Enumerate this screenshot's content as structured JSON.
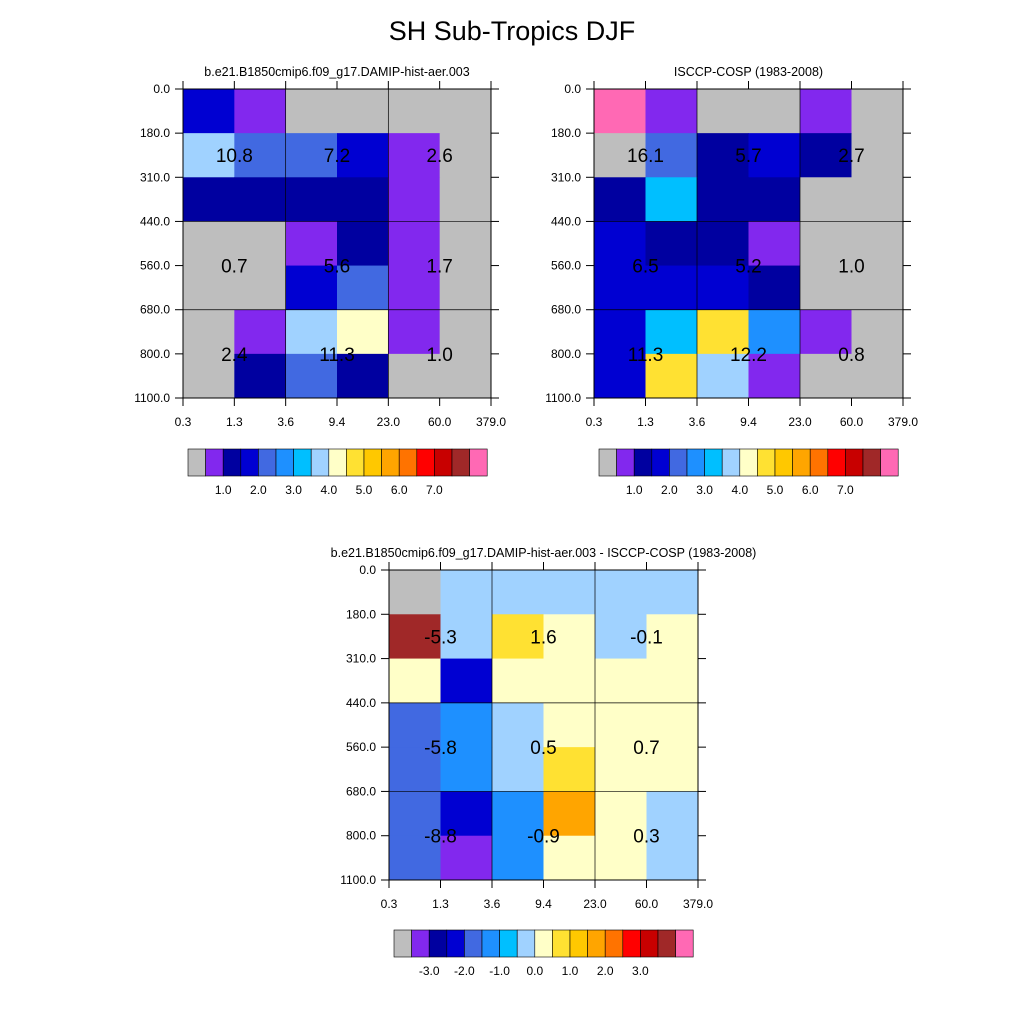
{
  "figure_title": "SH Sub-Tropics DJF",
  "chart_data": [
    {
      "type": "heatmap",
      "title": "b.e21.B1850cmip6.f09_g17.DAMIP-hist-aer.003",
      "x_tick_labels": [
        "0.3",
        "1.3",
        "3.6",
        "9.4",
        "23.0",
        "60.0",
        "379.0"
      ],
      "y_tick_labels": [
        "0.0",
        "180.0",
        "310.0",
        "440.0",
        "560.0",
        "680.0",
        "800.0",
        "1100.0"
      ],
      "cells": [
        [
          "blue",
          "purple",
          "gray",
          "gray",
          "gray",
          "gray"
        ],
        [
          "lightblue",
          "royal",
          "royal",
          "blue",
          "purple",
          "gray"
        ],
        [
          "navy",
          "navy",
          "navy",
          "navy",
          "purple",
          "gray"
        ],
        [
          "gray",
          "gray",
          "purple",
          "navy",
          "purple",
          "gray"
        ],
        [
          "gray",
          "gray",
          "blue",
          "royal",
          "purple",
          "gray"
        ],
        [
          "gray",
          "purple",
          "lightblue",
          "cream",
          "purple",
          "gray"
        ],
        [
          "gray",
          "navy",
          "royal",
          "navy",
          "gray",
          "gray"
        ]
      ],
      "group_labels": [
        [
          "10.8",
          "7.2",
          "2.6"
        ],
        [
          "0.7",
          "5.6",
          "1.7"
        ],
        [
          "2.4",
          "11.3",
          "1.0"
        ]
      ],
      "colorbar_labels": [
        "1.0",
        "2.0",
        "3.0",
        "4.0",
        "5.0",
        "6.0",
        "7.0"
      ]
    },
    {
      "type": "heatmap",
      "title": "ISCCP-COSP (1983-2008)",
      "x_tick_labels": [
        "0.3",
        "1.3",
        "3.6",
        "9.4",
        "23.0",
        "60.0",
        "379.0"
      ],
      "y_tick_labels": [
        "0.0",
        "180.0",
        "310.0",
        "440.0",
        "560.0",
        "680.0",
        "800.0",
        "1100.0"
      ],
      "cells": [
        [
          "pink",
          "purple",
          "gray",
          "gray",
          "purple",
          "gray"
        ],
        [
          "gray",
          "royal",
          "navy",
          "blue",
          "navy",
          "gray"
        ],
        [
          "navy",
          "cyan",
          "navy",
          "navy",
          "gray",
          "gray"
        ],
        [
          "blue",
          "navy",
          "navy",
          "purple",
          "gray",
          "gray"
        ],
        [
          "blue",
          "blue",
          "blue",
          "navy",
          "gray",
          "gray"
        ],
        [
          "blue",
          "cyan",
          "yellow",
          "dodger",
          "purple",
          "gray"
        ],
        [
          "blue",
          "yellow",
          "lightblue",
          "purple",
          "gray",
          "gray"
        ]
      ],
      "group_labels": [
        [
          "16.1",
          "5.7",
          "2.7"
        ],
        [
          "6.5",
          "5.2",
          "1.0"
        ],
        [
          "11.3",
          "12.2",
          "0.8"
        ]
      ],
      "colorbar_labels": [
        "1.0",
        "2.0",
        "3.0",
        "4.0",
        "5.0",
        "6.0",
        "7.0"
      ]
    },
    {
      "type": "heatmap",
      "title": "b.e21.B1850cmip6.f09_g17.DAMIP-hist-aer.003 - ISCCP-COSP (1983-2008)",
      "x_tick_labels": [
        "0.3",
        "1.3",
        "3.6",
        "9.4",
        "23.0",
        "60.0",
        "379.0"
      ],
      "y_tick_labels": [
        "0.0",
        "180.0",
        "310.0",
        "440.0",
        "560.0",
        "680.0",
        "800.0",
        "1100.0"
      ],
      "cells": [
        [
          "gray",
          "lightblue",
          "lightblue",
          "lightblue",
          "lightblue",
          "lightblue"
        ],
        [
          "brown",
          "lightblue",
          "yellow",
          "cream",
          "lightblue",
          "cream"
        ],
        [
          "cream",
          "blue",
          "cream",
          "cream",
          "cream",
          "cream"
        ],
        [
          "royal",
          "dodger",
          "lightblue",
          "cream",
          "cream",
          "cream"
        ],
        [
          "royal",
          "dodger",
          "lightblue",
          "yellow",
          "cream",
          "cream"
        ],
        [
          "royal",
          "blue",
          "dodger",
          "orange",
          "cream",
          "lightblue"
        ],
        [
          "royal",
          "purple",
          "dodger",
          "cream",
          "cream",
          "lightblue"
        ]
      ],
      "group_labels": [
        [
          "-5.3",
          "1.6",
          "-0.1"
        ],
        [
          "-5.8",
          "0.5",
          "0.7"
        ],
        [
          "-8.8",
          "-0.9",
          "0.3"
        ]
      ],
      "colorbar_labels": [
        "-3.0",
        "-2.0",
        "-1.0",
        "0.0",
        "1.0",
        "2.0",
        "3.0"
      ]
    }
  ],
  "palette": {
    "gray": "#bebebe",
    "purple": "#8228ee",
    "navy": "#0000a0",
    "blue": "#0000d2",
    "royal": "#4169e1",
    "dodger": "#1e90ff",
    "cyan": "#00bfff",
    "lightblue": "#a0d2ff",
    "cream": "#ffffc8",
    "yellow": "#ffe132",
    "gold": "#ffc800",
    "orange": "#ffa500",
    "darkorange": "#ff7300",
    "red": "#ff0000",
    "crimson": "#c80000",
    "brown": "#a02828",
    "pink": "#ff69b4"
  },
  "colorbar_colors": [
    "gray",
    "purple",
    "navy",
    "blue",
    "royal",
    "dodger",
    "cyan",
    "lightblue",
    "cream",
    "yellow",
    "gold",
    "orange",
    "darkorange",
    "red",
    "crimson",
    "brown",
    "pink"
  ]
}
